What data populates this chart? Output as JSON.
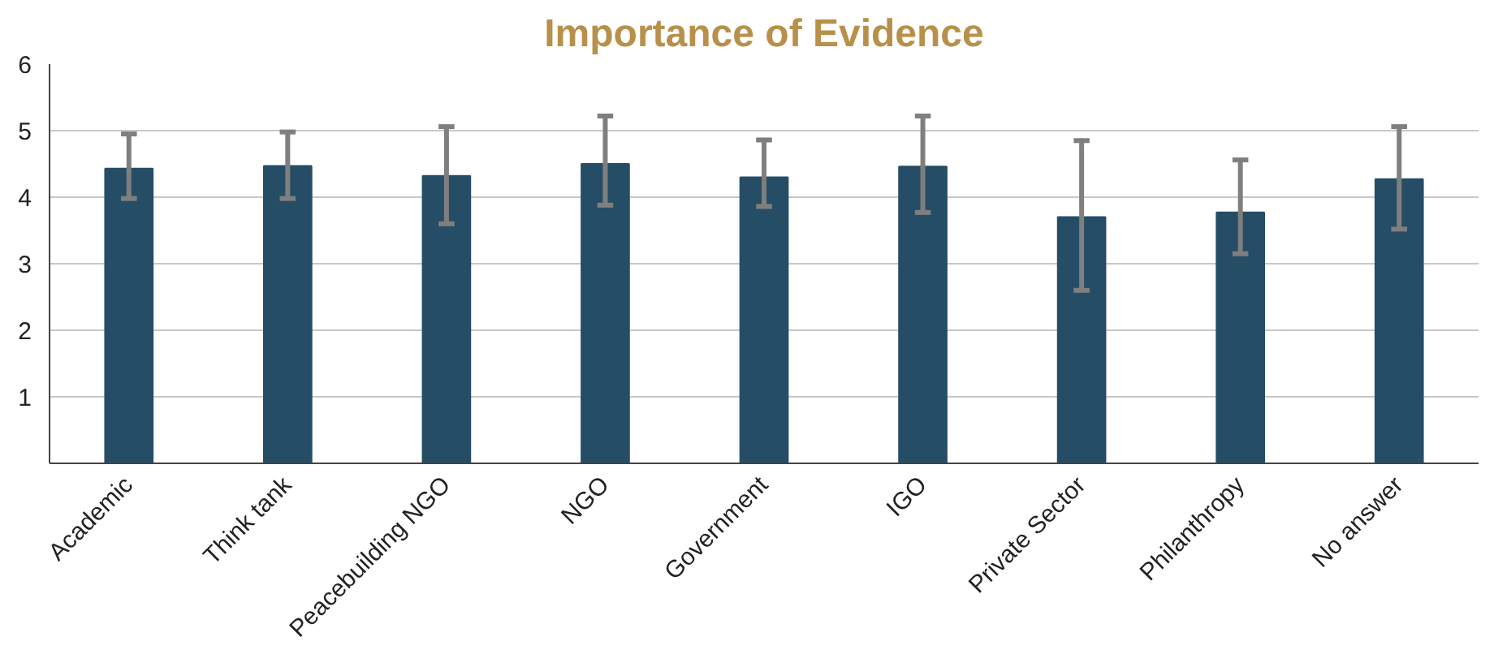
{
  "chart_data": {
    "type": "bar",
    "title": "Importance of Evidence",
    "categories": [
      "Academic",
      "Think tank",
      "Peacebuilding NGO",
      "NGO",
      "Government",
      "IGO",
      "Private Sector",
      "Philanthropy",
      "No answer"
    ],
    "series": [
      {
        "color": "#264d66",
        "values": [
          4.43,
          4.47,
          4.32,
          4.5,
          4.3,
          4.46,
          3.7,
          3.77,
          4.27
        ],
        "errors": [
          [
            3.98,
            4.95
          ],
          [
            3.98,
            4.98
          ],
          [
            3.6,
            5.06
          ],
          [
            3.88,
            5.22
          ],
          [
            3.86,
            4.86
          ],
          [
            3.77,
            5.22
          ],
          [
            2.6,
            4.85
          ],
          [
            3.15,
            4.56
          ],
          [
            3.52,
            5.06
          ]
        ]
      }
    ],
    "ylim": [
      0,
      6
    ],
    "yticks": [
      1,
      2,
      3,
      4,
      5,
      6
    ],
    "grid": "y"
  }
}
